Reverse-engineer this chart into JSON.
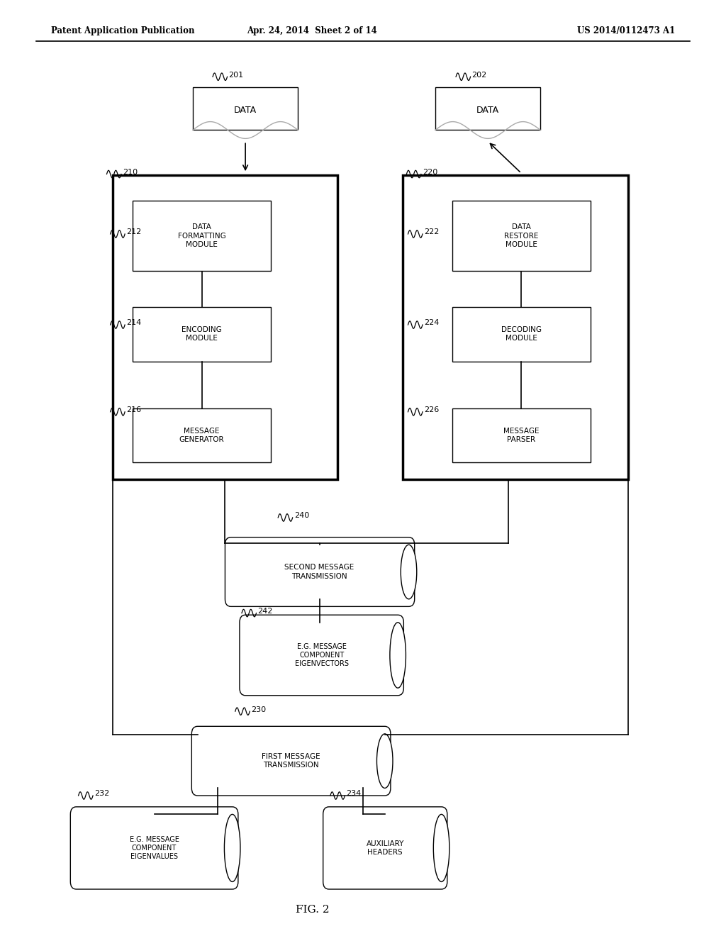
{
  "header_left": "Patent Application Publication",
  "header_mid": "Apr. 24, 2014  Sheet 2 of 14",
  "header_right": "US 2014/0112473 A1",
  "fig_label": "FIG. 2",
  "bg_color": "#ffffff",
  "text_color": "#000000"
}
